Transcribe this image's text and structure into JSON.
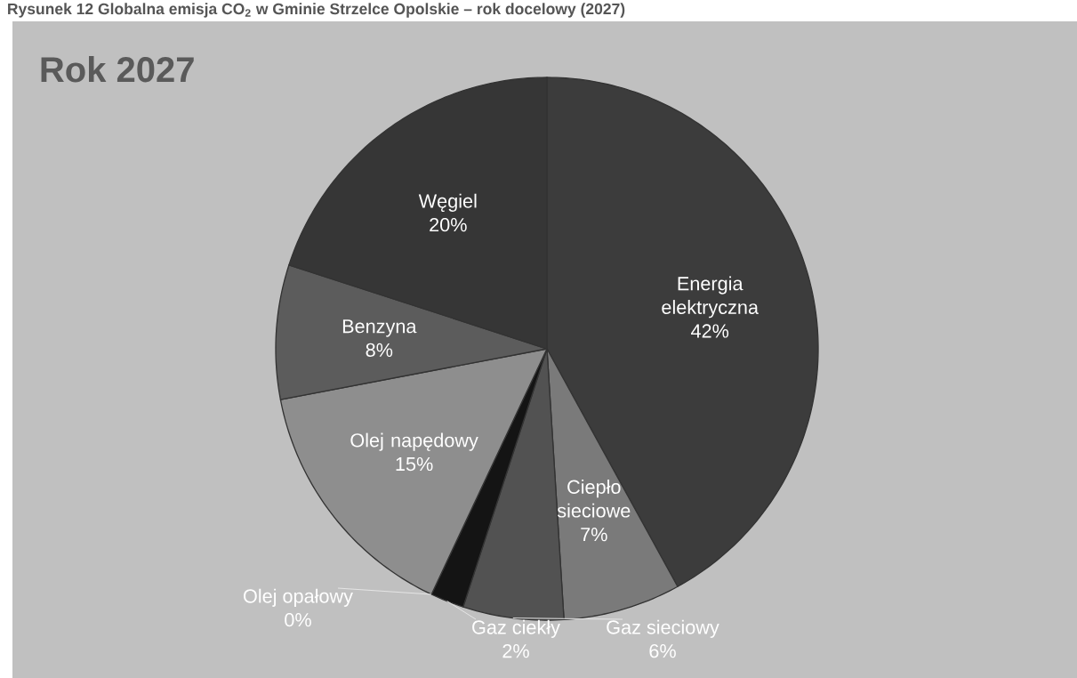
{
  "chart_data": {
    "type": "pie",
    "title": "Rok 2027",
    "annotations": [
      "Rysunek 12 Globalna emisja CO$_{2}$ w Gminie Strzelce Opolskie – rok docelowy (2027)"
    ],
    "categories": [
      "Energia elektryczna",
      "Ciepło sieciowe",
      "Gaz sieciowy",
      "Gaz ciekły",
      "Olej opałowy",
      "Olej napędowy",
      "Benzyna",
      "Węgiel"
    ],
    "values": [
      42,
      7,
      6,
      2,
      0,
      15,
      8,
      20
    ],
    "value_labels": [
      "42%",
      "7%",
      "6%",
      "2%",
      "0%",
      "15%",
      "8%",
      "20%"
    ],
    "colors": [
      "#3c3c3c",
      "#7a7a7a",
      "#525252",
      "#141414",
      "#d0d0d0",
      "#8e8e8e",
      "#5c5c5c",
      "#363636"
    ]
  }
}
